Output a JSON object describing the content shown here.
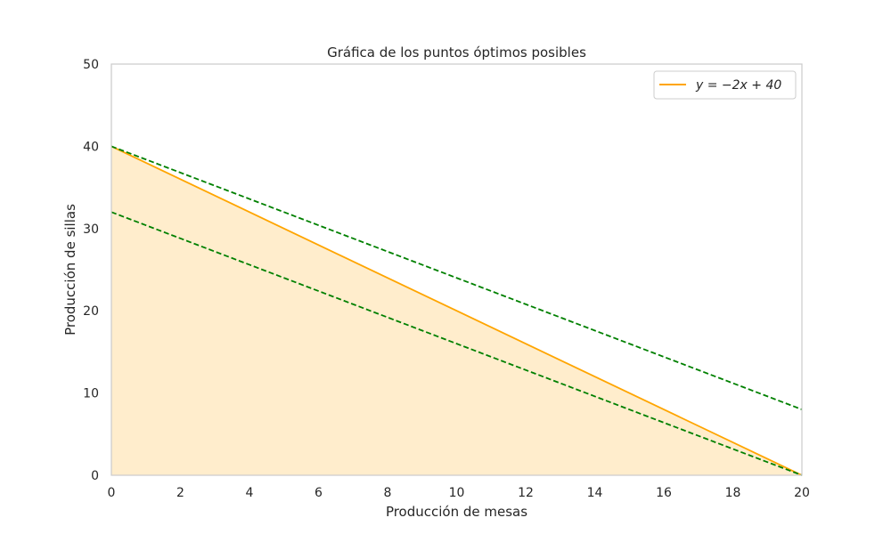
{
  "chart_data": {
    "type": "line",
    "title": "Gráfica de los puntos óptimos posibles",
    "xlabel": "Producción de mesas",
    "ylabel": "Producción de sillas",
    "xlim": [
      0,
      20
    ],
    "ylim": [
      0,
      50
    ],
    "xticks": [
      0,
      2,
      4,
      6,
      8,
      10,
      12,
      14,
      16,
      18,
      20
    ],
    "yticks": [
      0,
      10,
      20,
      30,
      40,
      50
    ],
    "grid": false,
    "legend_position": "top-right",
    "series": [
      {
        "name": "y = −2x + 40",
        "style": "solid",
        "color": "#ffa500",
        "fill_below": true,
        "fill_color": "#ffa500",
        "x": [
          0,
          20
        ],
        "y": [
          40,
          0
        ]
      },
      {
        "style": "dashed",
        "color": "#008000",
        "x": [
          0,
          20
        ],
        "y": [
          40,
          8
        ]
      },
      {
        "style": "dashed",
        "color": "#008000",
        "x": [
          0,
          20
        ],
        "y": [
          32,
          0
        ]
      }
    ]
  }
}
